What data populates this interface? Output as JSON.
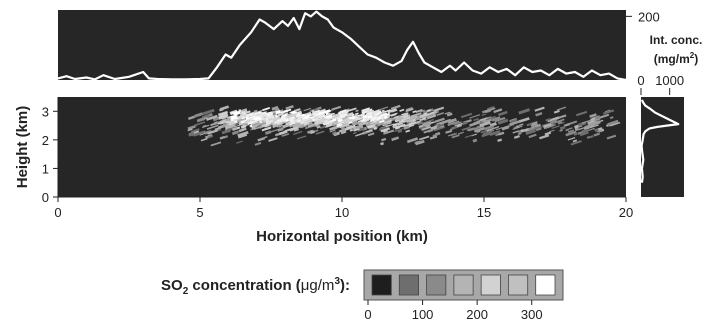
{
  "chart_data": [
    {
      "type": "line",
      "panel": "top",
      "ylabel_lines": [
        "Int. conc.",
        "(mg/m",
        "2",
        ")"
      ],
      "ylim": [
        0,
        220
      ],
      "yticks": [
        200
      ],
      "xlim": [
        0,
        20
      ],
      "series": [
        {
          "x": [
            0,
            0.3,
            0.6,
            1,
            1.3,
            1.6,
            2,
            2.5,
            3,
            3.2,
            3.5,
            4,
            4.5,
            5,
            5.3,
            5.6,
            5.9,
            6.1,
            6.4,
            6.8,
            7.1,
            7.3,
            7.6,
            7.9,
            8.1,
            8.3,
            8.5,
            8.7,
            8.9,
            9.1,
            9.3,
            9.5,
            9.7,
            10,
            10.3,
            10.6,
            10.9,
            11.2,
            11.5,
            11.8,
            12.1,
            12.3,
            12.5,
            12.7,
            12.9,
            13.2,
            13.5,
            13.8,
            14,
            14.3,
            14.6,
            14.9,
            15.2,
            15.5,
            15.8,
            16.1,
            16.4,
            16.7,
            17,
            17.3,
            17.6,
            17.9,
            18.2,
            18.5,
            18.8,
            19.1,
            19.4,
            19.7,
            20
          ],
          "values": [
            5,
            12,
            3,
            8,
            2,
            15,
            3,
            10,
            25,
            5,
            3,
            2,
            2,
            3,
            5,
            40,
            80,
            70,
            110,
            150,
            190,
            180,
            160,
            185,
            170,
            195,
            160,
            210,
            200,
            215,
            200,
            190,
            165,
            150,
            130,
            105,
            80,
            70,
            55,
            45,
            60,
            95,
            120,
            85,
            55,
            40,
            25,
            45,
            30,
            55,
            30,
            20,
            40,
            25,
            35,
            15,
            40,
            25,
            30,
            15,
            35,
            20,
            25,
            10,
            30,
            15,
            20,
            5,
            0
          ]
        }
      ]
    },
    {
      "type": "heatmap",
      "panel": "main",
      "xlabel": "Horizontal position (km)",
      "ylabel": "Height (km)",
      "xlim": [
        0,
        20
      ],
      "ylim": [
        0,
        3.5
      ],
      "xticks": [
        0,
        5,
        10,
        15,
        20
      ],
      "yticks": [
        0,
        1,
        2,
        3
      ],
      "background_color": "#262626",
      "plume": {
        "core": {
          "x": [
            6,
            11.5
          ],
          "height_center": 2.8,
          "value": 300
        },
        "inner": {
          "x": [
            5.5,
            13
          ],
          "height_center": 2.7,
          "value": 220
        },
        "outer": {
          "x": [
            4.5,
            19.5
          ],
          "height_center": 2.5,
          "value": 150
        }
      }
    },
    {
      "type": "line",
      "panel": "right",
      "xlim": [
        0,
        1500
      ],
      "xticks": [
        0,
        1000
      ],
      "ylim": [
        0,
        3.5
      ],
      "series": [
        {
          "x": [
            30,
            60,
            30,
            80,
            40,
            20,
            60,
            90,
            150,
            300,
            550,
            900,
            1300,
            1100,
            800,
            500,
            300,
            150,
            80,
            30
          ],
          "values": [
            0.5,
            0.7,
            1.0,
            1.3,
            1.6,
            1.8,
            2.0,
            2.2,
            2.3,
            2.4,
            2.45,
            2.5,
            2.55,
            2.65,
            2.8,
            2.95,
            3.1,
            3.2,
            3.3,
            3.4
          ]
        }
      ]
    },
    {
      "type": "bar",
      "panel": "legend",
      "label_parts": [
        "SO",
        "2",
        " concentration (",
        "μg/m",
        "3",
        "):"
      ],
      "xticks": [
        0,
        100,
        200,
        300
      ],
      "xlim": [
        0,
        350
      ],
      "swatches": [
        {
          "from": 0,
          "to": 50,
          "color": "#1e1e1e"
        },
        {
          "from": 50,
          "to": 100,
          "color": "#6e6e6e"
        },
        {
          "from": 100,
          "to": 150,
          "color": "#8a8a8a"
        },
        {
          "from": 150,
          "to": 200,
          "color": "#b4b4b4"
        },
        {
          "from": 200,
          "to": 250,
          "color": "#d2d2d2"
        },
        {
          "from": 250,
          "to": 300,
          "color": "#c0c0c0"
        },
        {
          "from": 300,
          "to": 350,
          "color": "#ffffff"
        }
      ]
    }
  ]
}
